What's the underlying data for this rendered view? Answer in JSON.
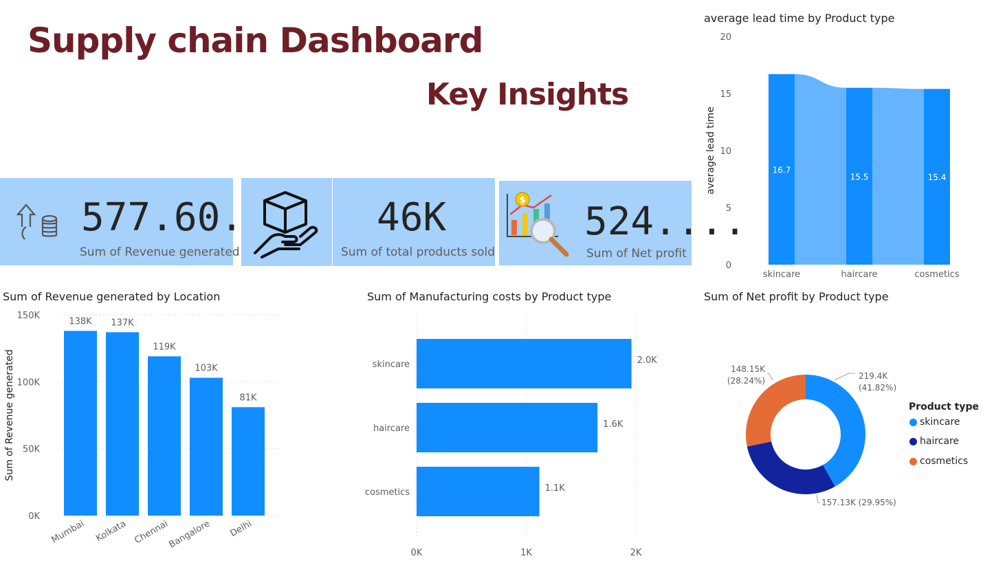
{
  "header": {
    "title": "Supply chain Dashboard",
    "subtitle": "Key Insights"
  },
  "kpis": [
    {
      "value": "577.60...",
      "label": "Sum of Revenue generated",
      "icon": "revenue-coins-icon"
    },
    {
      "value": "46K",
      "label": "Sum of total products sold",
      "icon": "box-hand-icon"
    },
    {
      "value": "524....",
      "label": "Sum of Net profit",
      "icon": "profit-chart-magnifier-icon"
    }
  ],
  "colors": {
    "bar": "#118dff",
    "ribbon": "#5eb0ff",
    "kpi_bg": "#a5d1fb",
    "title": "#6e1f26",
    "skincare": "#118dff",
    "haircare": "#12239e",
    "cosmetics": "#e66c37"
  },
  "chart_data": [
    {
      "id": "lead_time",
      "type": "bar",
      "title": "average lead time by Product type",
      "ylabel": "average lead time",
      "categories": [
        "skincare",
        "haircare",
        "cosmetics"
      ],
      "values": [
        16.7,
        15.5,
        15.4
      ],
      "labels": [
        "16.7",
        "15.5",
        "15.4"
      ],
      "ylim": [
        0,
        20
      ],
      "yticks": [
        "0",
        "5",
        "10",
        "15",
        "20"
      ],
      "ribbon": true
    },
    {
      "id": "revenue_location",
      "type": "bar",
      "title": "Sum of Revenue generated by Location",
      "ylabel": "Sum of Revenue generated",
      "categories": [
        "Mumbai",
        "Kolkata",
        "Chennai",
        "Bangalore",
        "Delhi"
      ],
      "values": [
        138,
        137,
        119,
        103,
        81
      ],
      "labels": [
        "138K",
        "137K",
        "119K",
        "103K",
        "81K"
      ],
      "ylim": [
        0,
        150
      ],
      "yticks": [
        "0K",
        "50K",
        "100K",
        "150K"
      ],
      "grid": true
    },
    {
      "id": "manufacturing_costs",
      "type": "bar",
      "orientation": "horizontal",
      "title": "Sum of Manufacturing costs by Product type",
      "categories": [
        "skincare",
        "haircare",
        "cosmetics"
      ],
      "values": [
        1.96,
        1.65,
        1.12
      ],
      "labels": [
        "2.0K",
        "1.6K",
        "1.1K"
      ],
      "xlim": [
        0,
        2
      ],
      "xticks": [
        "0K",
        "1K",
        "2K"
      ],
      "grid": true
    },
    {
      "id": "net_profit",
      "type": "pie",
      "donut": true,
      "title": "Sum of Net profit by Product type",
      "categories": [
        "skincare",
        "haircare",
        "cosmetics"
      ],
      "values": [
        219.4,
        157.13,
        148.15
      ],
      "labels": [
        "219.4K\n(41.82%)",
        "157.13K (29.95%)",
        "148.15K\n(28.24%)"
      ],
      "legend_title": "Product type",
      "legend_position": "right"
    }
  ]
}
